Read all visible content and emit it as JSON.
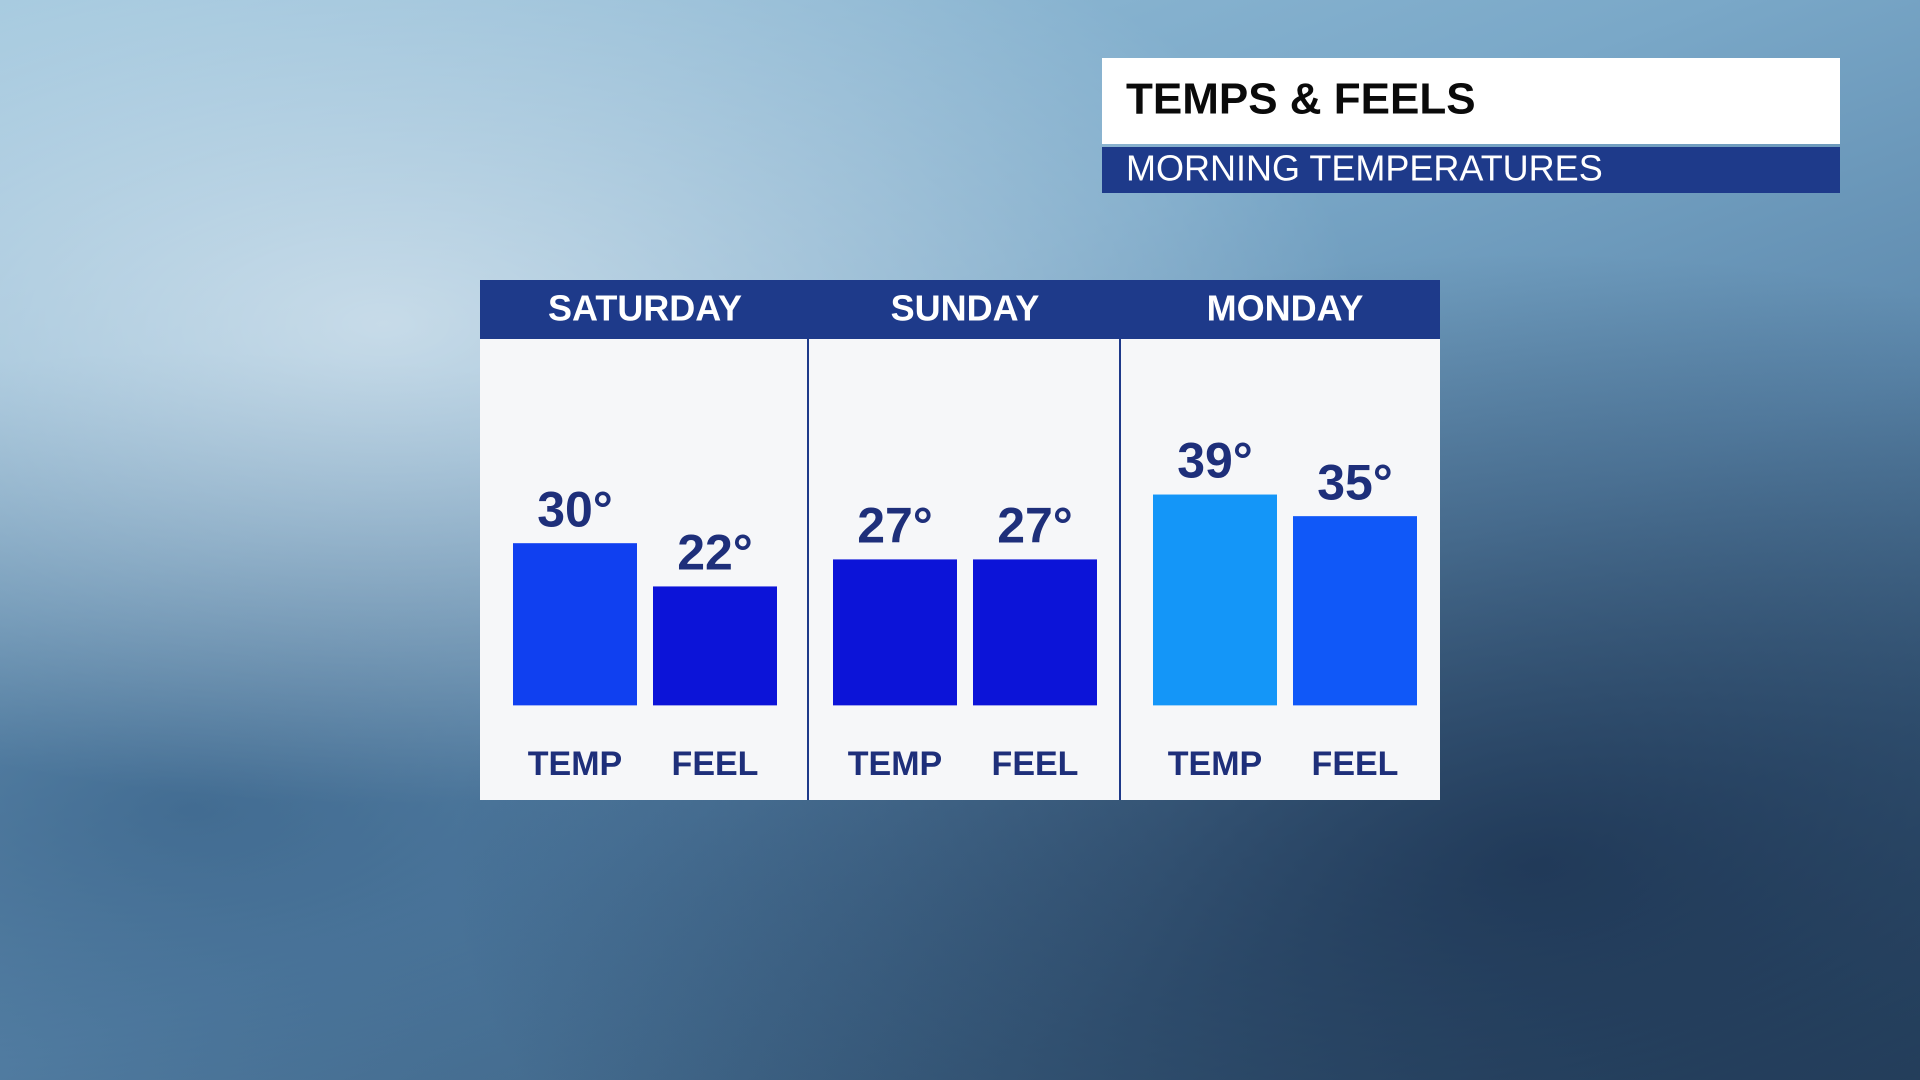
{
  "chart_data": {
    "type": "bar",
    "title": "TEMPS & FEELS",
    "subtitle": "MORNING TEMPERATURES",
    "categories": [
      "SATURDAY",
      "SUNDAY",
      "MONDAY"
    ],
    "series": [
      {
        "name": "TEMP",
        "colors": [
          "#1040f0",
          "#0c14d8",
          "#1496f8"
        ],
        "values": [
          30,
          27,
          39
        ],
        "value_labels": [
          "30°",
          "27°",
          "39°"
        ]
      },
      {
        "name": "FEEL",
        "colors": [
          "#0c14d8",
          "#0c14d8",
          "#1058f8"
        ],
        "values": [
          22,
          27,
          35
        ],
        "value_labels": [
          "22°",
          "27°",
          "35°"
        ]
      }
    ],
    "ylim": [
      -4,
      60
    ]
  }
}
